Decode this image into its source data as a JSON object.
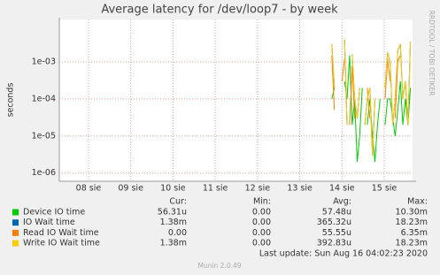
{
  "chart_data": {
    "type": "line",
    "title": "Average latency for /dev/loop7 - by week",
    "y_label": "seconds",
    "side_label": "RRDTOOL / TOBI OETIKER",
    "log_scale": true,
    "grid": true,
    "ylim": [
      6e-07,
      0.014
    ],
    "yticks": [
      {
        "value": 1e-06,
        "label": "1e-06"
      },
      {
        "value": 1e-05,
        "label": "1e-05"
      },
      {
        "value": 0.0001,
        "label": "1e-04"
      },
      {
        "value": 0.001,
        "label": "1e-03"
      }
    ],
    "xlim": [
      7.31,
      15.67
    ],
    "xticks": [
      {
        "value": 8,
        "label": "08 sie"
      },
      {
        "value": 9,
        "label": "09 sie"
      },
      {
        "value": 10,
        "label": "10 sie"
      },
      {
        "value": 11,
        "label": "11 sie"
      },
      {
        "value": 12,
        "label": "12 sie"
      },
      {
        "value": 13,
        "label": "13 sie"
      },
      {
        "value": 14,
        "label": "14 sie"
      },
      {
        "value": 15,
        "label": "15 sie"
      }
    ],
    "x": [
      13.76,
      13.82,
      13.88,
      13.94,
      14.0,
      14.06,
      14.12,
      14.18,
      14.24,
      14.3,
      14.36,
      14.42,
      14.48,
      14.54,
      14.6,
      14.66,
      14.72,
      14.78,
      14.84,
      14.9,
      14.96,
      15.02,
      15.08,
      15.14,
      15.2,
      15.26,
      15.32,
      15.38,
      15.44,
      15.5,
      15.56,
      15.62
    ],
    "series": [
      {
        "name": "Device IO time",
        "color": "#00cc00",
        "values": [
          0.0001,
          0.0002,
          null,
          3e-05,
          null,
          0.0003,
          0.0001,
          0.0015,
          2e-05,
          0.0001,
          2e-06,
          1e-05,
          0.0002,
          null,
          2e-05,
          0.0001,
          1e-05,
          2e-06,
          2e-05,
          0.0001,
          null,
          2e-05,
          0.0001,
          0.0001,
          3e-05,
          1e-05,
          5e-05,
          0.0003,
          2e-05,
          0.0001,
          2e-05,
          0.0002
        ]
      },
      {
        "name": "IO Wait time",
        "color": "#0066b3",
        "values": [
          0.003,
          0.0002,
          null,
          3e-05,
          null,
          0.004,
          2e-05,
          null,
          0.0016,
          0.0001,
          3e-05,
          0.0002,
          null,
          2e-05,
          0.0001,
          0.0002,
          3e-06,
          0.0001,
          null,
          2e-05,
          null,
          0.0002,
          0.0018,
          0.001,
          2e-05,
          0.0001,
          0.002,
          0.003,
          0.0001,
          0.0003,
          2e-05,
          0.0035
        ]
      },
      {
        "name": "Read IO Wait time",
        "color": "#ff8000",
        "values": [
          0.0015,
          5e-05,
          null,
          null,
          0.0003,
          0.0012,
          null,
          2e-05,
          0.0008,
          3e-05,
          null,
          5e-05,
          null,
          null,
          0.0002,
          3e-05,
          null,
          5e-05,
          null,
          null,
          null,
          0.0001,
          0.0012,
          0.0003,
          null,
          3e-05,
          0.001,
          0.0015,
          null,
          5e-05,
          null,
          0.001
        ]
      },
      {
        "name": "Write IO Wait time",
        "color": "#ffcc00",
        "values": [
          0.003,
          0.0002,
          null,
          3e-05,
          null,
          0.004,
          2e-05,
          null,
          0.0016,
          0.0001,
          3e-05,
          0.0002,
          null,
          2e-05,
          0.0001,
          0.0002,
          3e-06,
          0.0001,
          null,
          2e-05,
          null,
          0.0002,
          0.0018,
          0.001,
          2e-05,
          0.0001,
          0.002,
          0.003,
          0.0001,
          0.0003,
          2e-05,
          0.0035
        ]
      }
    ],
    "legend_table": {
      "headers": [
        "Cur:",
        "Min:",
        "Avg:",
        "Max:"
      ],
      "rows": [
        [
          "56.31u",
          "0.00",
          "57.48u",
          "10.30m"
        ],
        [
          "1.38m",
          "0.00",
          "365.32u",
          "18.23m"
        ],
        [
          "0.00",
          "0.00",
          "55.55u",
          "6.35m"
        ],
        [
          "1.38m",
          "0.00",
          "392.83u",
          "18.23m"
        ]
      ]
    },
    "last_update": "Last update: Sun Aug 16 04:02:23 2020",
    "footer": "Munin 2.0.49"
  }
}
